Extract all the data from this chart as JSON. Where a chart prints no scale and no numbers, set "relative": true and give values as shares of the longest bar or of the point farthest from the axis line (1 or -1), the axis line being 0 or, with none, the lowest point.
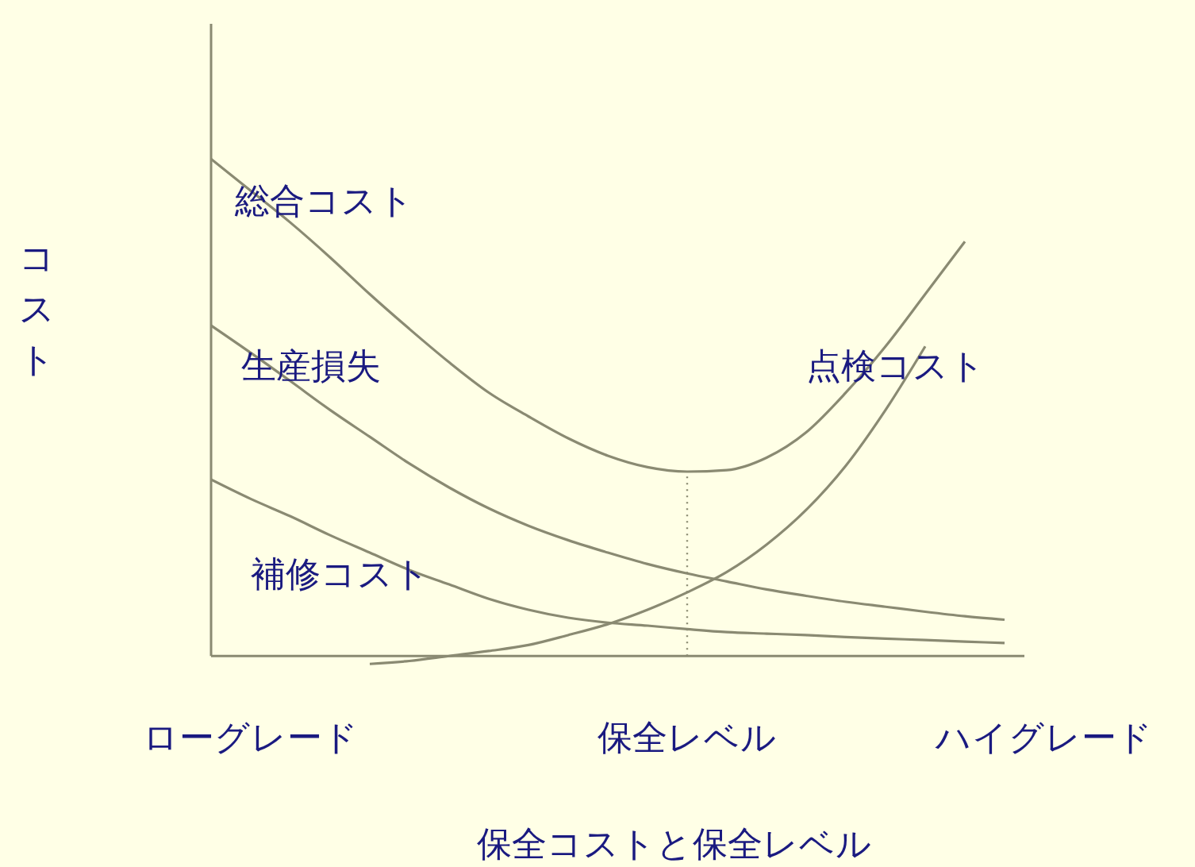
{
  "chart_data": {
    "type": "line",
    "relative": true,
    "xlabel": "保全コストと保全レベル",
    "ylabel": "コスト",
    "categories": [
      null,
      "ローグレード",
      null,
      null,
      null,
      null,
      null,
      null,
      null,
      null,
      null,
      null,
      "保全レベル",
      null,
      null,
      null,
      null,
      null,
      null,
      null,
      null,
      "ハイグレード"
    ],
    "series": [
      {
        "name": "総合コスト",
        "color": "#8a8a72",
        "values": [
          1.0,
          0.936,
          0.872,
          0.802,
          0.728,
          0.658,
          0.591,
          0.53,
          0.482,
          0.438,
          0.403,
          0.38,
          0.371,
          0.374,
          0.399,
          0.45,
          0.53,
          0.623,
          0.728,
          0.834,
          null,
          null
        ]
      },
      {
        "name": "生産損失",
        "color": "#8a8a72",
        "values": [
          0.665,
          0.61,
          0.553,
          0.495,
          0.441,
          0.387,
          0.339,
          0.297,
          0.262,
          0.233,
          0.208,
          0.185,
          0.166,
          0.15,
          0.134,
          0.121,
          0.109,
          0.099,
          0.089,
          0.08,
          0.073,
          null
        ]
      },
      {
        "name": "補修コスト",
        "color": "#8a8a72",
        "values": [
          0.355,
          0.316,
          0.281,
          0.243,
          0.208,
          0.173,
          0.144,
          0.115,
          0.093,
          0.077,
          0.067,
          0.061,
          0.054,
          0.048,
          0.045,
          0.042,
          0.038,
          0.035,
          0.032,
          0.029,
          0.026,
          null
        ]
      },
      {
        "name": "点検コスト",
        "color": "#8a8a72",
        "values": [
          null,
          null,
          null,
          null,
          -0.016,
          -0.01,
          0,
          0.01,
          0.022,
          0.042,
          0.064,
          0.093,
          0.128,
          0.169,
          0.224,
          0.294,
          0.383,
          0.495,
          0.623,
          null,
          null,
          null
        ]
      }
    ],
    "ref_lines": [
      {
        "axis": "x",
        "value": "保全レベル",
        "line_style": "dotted",
        "color": "#8a8a72"
      }
    ]
  }
}
